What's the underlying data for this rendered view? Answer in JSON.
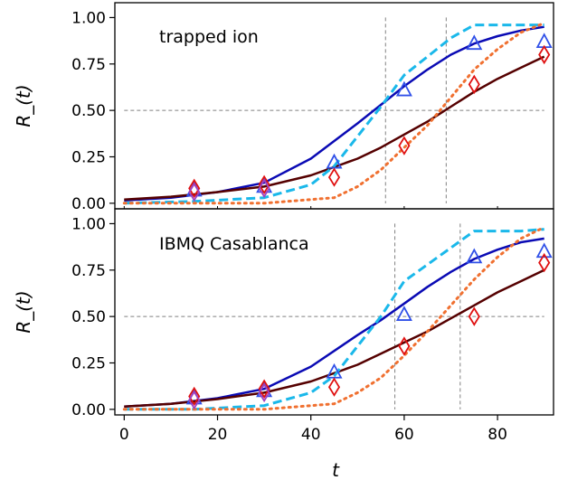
{
  "chart_data": [
    {
      "type": "line",
      "annotation": "trapped ion",
      "ylabel": "R_(t)",
      "xlabel": "",
      "xlim": [
        -2,
        92
      ],
      "ylim": [
        -0.03,
        1.08
      ],
      "yticks": [
        0.0,
        0.25,
        0.5,
        0.75,
        1.0
      ],
      "ytick_labels": [
        "0.00",
        "0.25",
        "0.50",
        "0.75",
        "1.00"
      ],
      "hline": 0.5,
      "vlines": [
        56,
        69
      ],
      "series": [
        {
          "style": "solid",
          "color": "#0a0ab4",
          "x": [
            0,
            10,
            20,
            30,
            40,
            50,
            55,
            60,
            65,
            70,
            75,
            80,
            85,
            90
          ],
          "y": [
            0.015,
            0.03,
            0.06,
            0.11,
            0.24,
            0.43,
            0.53,
            0.63,
            0.72,
            0.8,
            0.86,
            0.9,
            0.93,
            0.95
          ]
        },
        {
          "style": "solid",
          "color": "#550000",
          "x": [
            0,
            10,
            20,
            30,
            40,
            50,
            55,
            60,
            65,
            70,
            75,
            80,
            85,
            90
          ],
          "y": [
            0.02,
            0.035,
            0.06,
            0.09,
            0.15,
            0.24,
            0.3,
            0.37,
            0.44,
            0.52,
            0.6,
            0.67,
            0.73,
            0.79
          ]
        },
        {
          "style": "dashed",
          "color": "#1ab8ea",
          "x": [
            0,
            15,
            30,
            40,
            45,
            50,
            55,
            60,
            65,
            70,
            75,
            80,
            85,
            90
          ],
          "y": [
            0.0,
            0.01,
            0.03,
            0.1,
            0.2,
            0.36,
            0.52,
            0.69,
            0.79,
            0.89,
            0.96,
            0.96,
            0.96,
            0.96
          ]
        },
        {
          "style": "dotted",
          "color": "#f07030",
          "x": [
            0,
            15,
            30,
            45,
            50,
            55,
            60,
            65,
            70,
            75,
            80,
            85,
            90
          ],
          "y": [
            0.0,
            0.0,
            0.0,
            0.03,
            0.09,
            0.18,
            0.3,
            0.42,
            0.57,
            0.72,
            0.83,
            0.92,
            0.97
          ]
        }
      ],
      "markers": [
        {
          "shape": "triangle",
          "color": "#3050e8",
          "x": [
            15,
            30,
            45,
            60,
            75,
            90
          ],
          "y": [
            0.07,
            0.09,
            0.22,
            0.61,
            0.86,
            0.87
          ]
        },
        {
          "shape": "diamond",
          "color": "#e01010",
          "x": [
            15,
            30,
            45,
            60,
            75,
            90
          ],
          "y": [
            0.08,
            0.1,
            0.14,
            0.31,
            0.64,
            0.8
          ]
        },
        {
          "shape": "diamond",
          "color": "#a040c0",
          "x": [
            15,
            30
          ],
          "y": [
            0.06,
            0.08
          ]
        }
      ]
    },
    {
      "type": "line",
      "annotation": "IBMQ Casablanca",
      "ylabel": "R_(t)",
      "xlabel": "t",
      "xlim": [
        -2,
        92
      ],
      "ylim": [
        -0.03,
        1.08
      ],
      "yticks": [
        0.0,
        0.25,
        0.5,
        0.75,
        1.0
      ],
      "ytick_labels": [
        "0.00",
        "0.25",
        "0.50",
        "0.75",
        "1.00"
      ],
      "xticks": [
        0,
        20,
        40,
        60,
        80
      ],
      "xtick_labels": [
        "0",
        "20",
        "40",
        "60",
        "80"
      ],
      "hline": 0.5,
      "vlines": [
        58,
        72
      ],
      "series": [
        {
          "style": "solid",
          "color": "#0a0ab4",
          "x": [
            0,
            10,
            20,
            30,
            40,
            50,
            55,
            60,
            65,
            70,
            75,
            80,
            85,
            90
          ],
          "y": [
            0.015,
            0.03,
            0.06,
            0.11,
            0.23,
            0.4,
            0.48,
            0.57,
            0.66,
            0.74,
            0.81,
            0.86,
            0.9,
            0.92
          ]
        },
        {
          "style": "solid",
          "color": "#550000",
          "x": [
            0,
            10,
            20,
            30,
            40,
            50,
            55,
            60,
            65,
            70,
            75,
            80,
            85,
            90
          ],
          "y": [
            0.015,
            0.03,
            0.055,
            0.09,
            0.15,
            0.24,
            0.3,
            0.36,
            0.42,
            0.49,
            0.56,
            0.63,
            0.69,
            0.75
          ]
        },
        {
          "style": "dashed",
          "color": "#1ab8ea",
          "x": [
            0,
            15,
            30,
            40,
            45,
            50,
            55,
            60,
            65,
            70,
            75,
            80,
            85,
            90
          ],
          "y": [
            0.0,
            0.0,
            0.02,
            0.09,
            0.18,
            0.34,
            0.5,
            0.69,
            0.78,
            0.87,
            0.96,
            0.96,
            0.96,
            0.97
          ]
        },
        {
          "style": "dotted",
          "color": "#f07030",
          "x": [
            0,
            15,
            30,
            45,
            50,
            55,
            60,
            65,
            70,
            75,
            80,
            85,
            90
          ],
          "y": [
            0.0,
            0.0,
            0.0,
            0.03,
            0.09,
            0.17,
            0.29,
            0.42,
            0.56,
            0.7,
            0.82,
            0.92,
            0.98
          ]
        }
      ],
      "markers": [
        {
          "shape": "triangle",
          "color": "#3050e8",
          "x": [
            15,
            30,
            45,
            60,
            75,
            90
          ],
          "y": [
            0.06,
            0.1,
            0.2,
            0.51,
            0.82,
            0.85
          ]
        },
        {
          "shape": "diamond",
          "color": "#e01010",
          "x": [
            15,
            30,
            45,
            60,
            75,
            90
          ],
          "y": [
            0.07,
            0.11,
            0.12,
            0.34,
            0.5,
            0.79
          ]
        },
        {
          "shape": "diamond",
          "color": "#a040c0",
          "x": [
            15,
            30
          ],
          "y": [
            0.05,
            0.09
          ]
        }
      ]
    }
  ]
}
